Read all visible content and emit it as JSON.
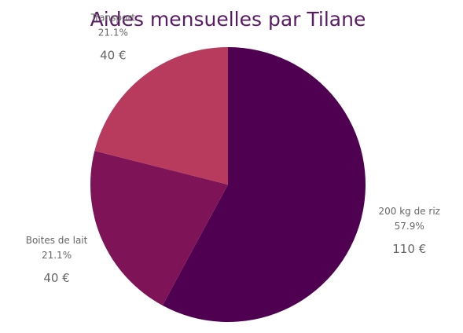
{
  "chart_data": {
    "type": "pie",
    "title": "Aides mensuelles par Tilane",
    "categories": [
      "200 kg de riz",
      "Boites de lait",
      "Transport"
    ],
    "values": [
      110,
      40,
      40
    ],
    "value_labels": [
      "110 €",
      "40 €",
      "40 €"
    ],
    "percentages": [
      57.9,
      21.1,
      21.1
    ],
    "percentage_labels": [
      "57.9%",
      "21.1%",
      "21.1%"
    ],
    "colors": [
      "#4f0050",
      "#7e1457",
      "#b83b5e"
    ]
  }
}
